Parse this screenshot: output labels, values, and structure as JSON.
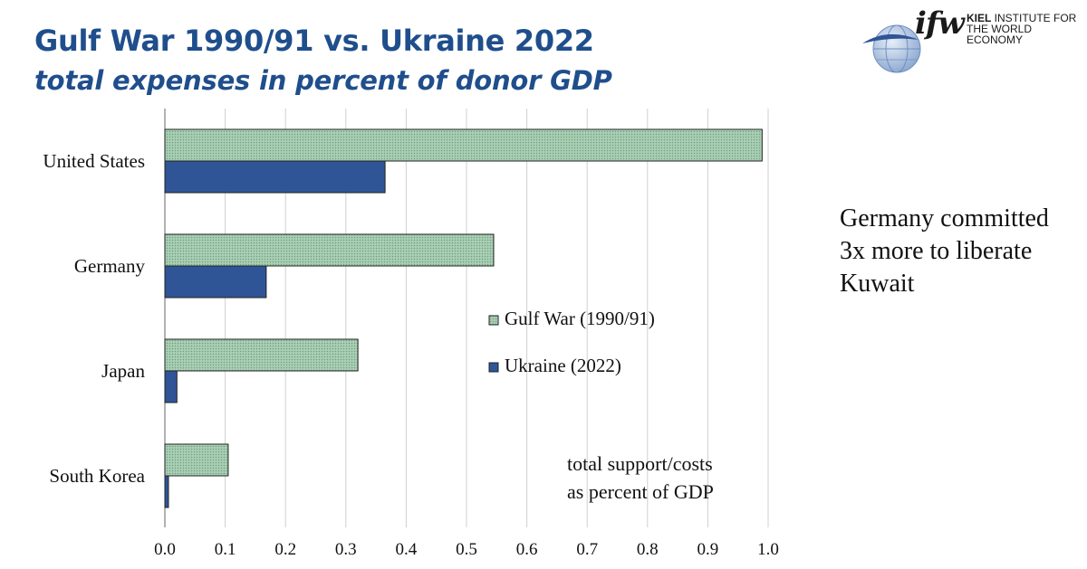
{
  "header": {
    "title": "Gulf War 1990/91 vs. Ukraine 2022",
    "subtitle": "total expenses in percent of donor GDP"
  },
  "logo": {
    "mark": "ifw",
    "line1_bold": "KIEL",
    "line1_rest": " INSTITUTE FOR",
    "line2": "THE WORLD ECONOMY"
  },
  "side_note": "Germany committed 3x more to liberate Kuwait",
  "colors": {
    "gulf_fill": "#a9cfb4",
    "gulf_dot": "#6f9e7e",
    "ukraine_fill": "#2f5597",
    "title": "#1f4e8c",
    "grid": "#d0d0d0"
  },
  "chart_data": {
    "type": "bar",
    "orientation": "horizontal",
    "categories": [
      "United States",
      "Germany",
      "Japan",
      "South Korea"
    ],
    "series": [
      {
        "name": "Gulf War (1990/91)",
        "values": [
          0.99,
          0.545,
          0.32,
          0.105
        ]
      },
      {
        "name": "Ukraine (2022)",
        "values": [
          0.365,
          0.168,
          0.02,
          0.006
        ]
      }
    ],
    "xlim": [
      0.0,
      1.0
    ],
    "xticks": [
      "0.0",
      "0.1",
      "0.2",
      "0.3",
      "0.4",
      "0.5",
      "0.6",
      "0.7",
      "0.8",
      "0.9",
      "1.0"
    ],
    "grid": "vertical",
    "legend_placement": "center-right",
    "annotation": [
      "total support/costs",
      "as percent of GDP"
    ]
  }
}
